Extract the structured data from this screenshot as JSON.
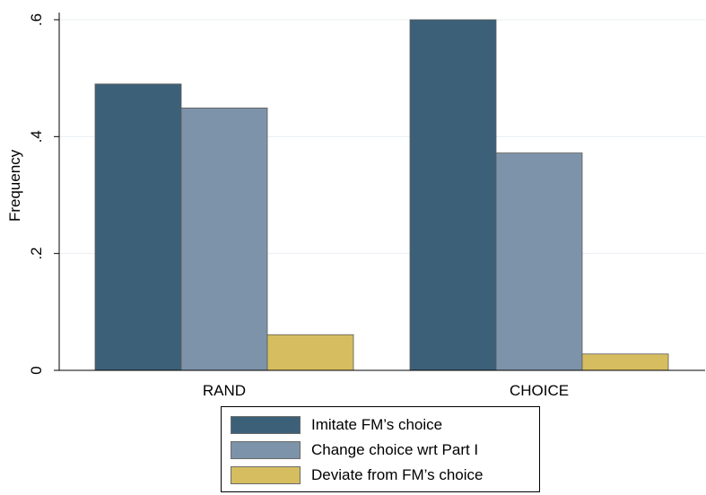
{
  "chart_data": {
    "type": "bar",
    "title": "",
    "xlabel": "",
    "ylabel": "Frequency",
    "ylim": [
      0,
      0.6
    ],
    "yticks": [
      0,
      0.2,
      0.4,
      0.6
    ],
    "ytick_labels": [
      "0",
      ".2",
      ".4",
      ".6"
    ],
    "grid": true,
    "legend_position": "bottom",
    "categories": [
      "RAND",
      "CHOICE"
    ],
    "series": [
      {
        "name": "Imitate FM’s choice",
        "color": "#3d6079",
        "values": [
          0.49,
          0.6
        ]
      },
      {
        "name": "Change choice wrt Part I",
        "color": "#7d93a9",
        "values": [
          0.449,
          0.372
        ]
      },
      {
        "name": "Deviate from FM’s choice",
        "color": "#d6bd5f",
        "values": [
          0.061,
          0.028
        ]
      }
    ]
  }
}
